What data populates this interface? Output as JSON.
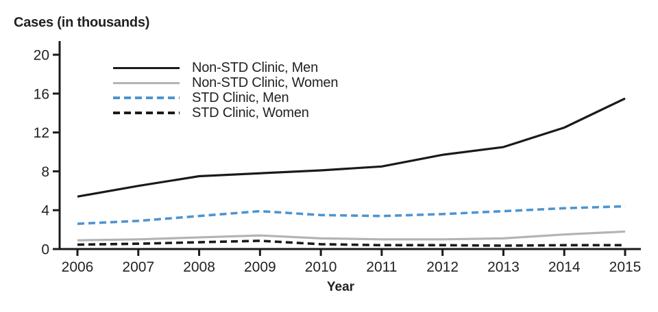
{
  "chart_data": {
    "type": "line",
    "title": "Cases (in thousands)",
    "xlabel": "Year",
    "ylabel": "Cases (in thousands)",
    "categories": [
      "2006",
      "2007",
      "2008",
      "2009",
      "2010",
      "2011",
      "2012",
      "2013",
      "2014",
      "2015"
    ],
    "ylim": [
      0,
      20
    ],
    "y_ticks": [
      0,
      4,
      8,
      12,
      16,
      20
    ],
    "grid": false,
    "legend_position": "top-left-inside",
    "axis_color": "#1a1a1a",
    "text_color": "#231f20",
    "series": [
      {
        "name": "Non-STD Clinic, Men",
        "color": "#1a1a1a",
        "style": "solid",
        "values": [
          5.4,
          6.5,
          7.5,
          7.8,
          8.1,
          8.5,
          9.7,
          10.5,
          12.5,
          15.5
        ]
      },
      {
        "name": "Non-STD Clinic, Women",
        "color": "#b3b3b3",
        "style": "solid",
        "values": [
          0.9,
          1.0,
          1.2,
          1.4,
          1.1,
          1.0,
          1.0,
          1.1,
          1.5,
          1.8
        ]
      },
      {
        "name": "STD Clinic, Men",
        "color": "#4d94d0",
        "style": "dashed",
        "values": [
          2.6,
          2.9,
          3.4,
          3.9,
          3.5,
          3.4,
          3.6,
          3.9,
          4.2,
          4.4
        ]
      },
      {
        "name": "STD Clinic, Women",
        "color": "#1a1a1a",
        "style": "dashed",
        "values": [
          0.45,
          0.55,
          0.7,
          0.85,
          0.5,
          0.4,
          0.4,
          0.35,
          0.4,
          0.4
        ]
      }
    ]
  }
}
